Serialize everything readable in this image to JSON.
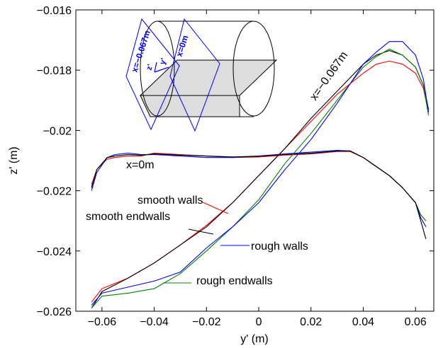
{
  "chart_data": {
    "type": "line",
    "xlabel": "y' (m)",
    "ylabel": "z' (m)",
    "xlim": [
      -0.07,
      0.067
    ],
    "ylim": [
      -0.026,
      -0.016
    ],
    "xticks": [
      -0.06,
      -0.04,
      -0.02,
      0,
      0.02,
      0.04,
      0.06
    ],
    "xtick_labels": [
      "−0.06",
      "−0.04",
      "−0.02",
      "0",
      "0.02",
      "0.04",
      "0.06"
    ],
    "yticks": [
      -0.026,
      -0.024,
      -0.022,
      -0.02,
      -0.018,
      -0.016
    ],
    "ytick_labels": [
      "−0.026",
      "−0.024",
      "−0.022",
      "−0.02",
      "−0.018",
      "−0.016"
    ],
    "grid": false,
    "annotations": {
      "x0": "x=0m",
      "xm067": "x=−0.067m",
      "smooth_walls": "smooth walls",
      "smooth_endwalls": "smooth endwalls",
      "rough_walls": "rough walls",
      "rough_endwalls": "rough endwalls"
    },
    "inset_labels": {
      "x_m067": "x=−0.067m",
      "x0": "x=0m",
      "z_axis": "z'",
      "y_axis": "y'"
    },
    "series": [
      {
        "color": "#ff0000",
        "group": "x=0m",
        "x": [
          -0.064,
          -0.062,
          -0.058,
          -0.055,
          -0.05,
          -0.045,
          -0.04,
          -0.03,
          -0.02,
          -0.01,
          0,
          0.01,
          0.02,
          0.03,
          0.035,
          0.04,
          0.045,
          0.05,
          0.055,
          0.06,
          0.062,
          0.064
        ],
        "y": [
          -0.0218,
          -0.0213,
          -0.02095,
          -0.0209,
          -0.02085,
          -0.02085,
          -0.02075,
          -0.0208,
          -0.02085,
          -0.0209,
          -0.02088,
          -0.02082,
          -0.02078,
          -0.0207,
          -0.0207,
          -0.0209,
          -0.0212,
          -0.0215,
          -0.0219,
          -0.0224,
          -0.0228,
          -0.023
        ]
      },
      {
        "color": "#008000",
        "group": "x=0m",
        "x": [
          -0.064,
          -0.062,
          -0.058,
          -0.055,
          -0.05,
          -0.045,
          -0.04,
          -0.03,
          -0.02,
          -0.01,
          0,
          0.01,
          0.02,
          0.03,
          0.035,
          0.04,
          0.045,
          0.05,
          0.055,
          0.06,
          0.062,
          0.064
        ],
        "y": [
          -0.0219,
          -0.0213,
          -0.0209,
          -0.02085,
          -0.0208,
          -0.02082,
          -0.0208,
          -0.02082,
          -0.02085,
          -0.02088,
          -0.02085,
          -0.0208,
          -0.02075,
          -0.02068,
          -0.02068,
          -0.0209,
          -0.0212,
          -0.0215,
          -0.0219,
          -0.0224,
          -0.0228,
          -0.023
        ]
      },
      {
        "color": "#0000ff",
        "group": "x=0m",
        "x": [
          -0.064,
          -0.062,
          -0.058,
          -0.055,
          -0.05,
          -0.045,
          -0.04,
          -0.03,
          -0.02,
          -0.01,
          0,
          0.01,
          0.02,
          0.03,
          0.035,
          0.04,
          0.045,
          0.05,
          0.055,
          0.06,
          0.062,
          0.064
        ],
        "y": [
          -0.022,
          -0.0214,
          -0.0209,
          -0.0208,
          -0.02075,
          -0.0208,
          -0.0208,
          -0.02085,
          -0.0209,
          -0.0209,
          -0.02085,
          -0.02078,
          -0.02072,
          -0.02066,
          -0.02068,
          -0.0209,
          -0.0212,
          -0.0215,
          -0.0219,
          -0.0224,
          -0.0229,
          -0.0232
        ]
      },
      {
        "color": "#000000",
        "group": "x=0m",
        "x": [
          -0.064,
          -0.062,
          -0.058,
          -0.055,
          -0.05,
          -0.045,
          -0.04,
          -0.03,
          -0.02,
          -0.01,
          0,
          0.01,
          0.02,
          0.03,
          0.035,
          0.04,
          0.045,
          0.05,
          0.055,
          0.06,
          0.062,
          0.064
        ],
        "y": [
          -0.0219,
          -0.0213,
          -0.0209,
          -0.02085,
          -0.0208,
          -0.02082,
          -0.02078,
          -0.02082,
          -0.02085,
          -0.02088,
          -0.02086,
          -0.0208,
          -0.02076,
          -0.02068,
          -0.02068,
          -0.0209,
          -0.0212,
          -0.0215,
          -0.0219,
          -0.0224,
          -0.023,
          -0.0236
        ]
      },
      {
        "color": "#ff0000",
        "group": "x=-0.067m",
        "x": [
          -0.064,
          -0.06,
          -0.05,
          -0.04,
          -0.03,
          -0.02,
          -0.01,
          0,
          0.01,
          0.02,
          0.03,
          0.04,
          0.045,
          0.05,
          0.055,
          0.06,
          0.063,
          0.065
        ],
        "y": [
          -0.0257,
          -0.02525,
          -0.0249,
          -0.0244,
          -0.0238,
          -0.02315,
          -0.0224,
          -0.0215,
          -0.0206,
          -0.0197,
          -0.0188,
          -0.0181,
          -0.0178,
          -0.0177,
          -0.0178,
          -0.0181,
          -0.0186,
          -0.0194
        ]
      },
      {
        "color": "#000000",
        "group": "x=-0.067m",
        "x": [
          -0.064,
          -0.06,
          -0.05,
          -0.04,
          -0.03,
          -0.02,
          -0.01,
          0,
          0.01,
          0.02,
          0.03,
          0.04,
          0.045,
          0.05,
          0.055,
          0.06,
          0.063,
          0.065
        ],
        "y": [
          -0.0259,
          -0.02535,
          -0.0249,
          -0.0244,
          -0.0238,
          -0.0232,
          -0.0224,
          -0.0215,
          -0.0206,
          -0.0196,
          -0.0187,
          -0.0178,
          -0.0175,
          -0.01735,
          -0.0175,
          -0.0179,
          -0.0185,
          -0.0193
        ]
      },
      {
        "color": "#008000",
        "group": "x=-0.067m",
        "x": [
          -0.064,
          -0.06,
          -0.05,
          -0.04,
          -0.03,
          -0.02,
          -0.01,
          0,
          0.01,
          0.02,
          0.03,
          0.04,
          0.045,
          0.05,
          0.055,
          0.06,
          0.063,
          0.065
        ],
        "y": [
          -0.0259,
          -0.0255,
          -0.0254,
          -0.02525,
          -0.02475,
          -0.024,
          -0.0232,
          -0.0223,
          -0.0211,
          -0.0201,
          -0.019,
          -0.0179,
          -0.01755,
          -0.0173,
          -0.0175,
          -0.0179,
          -0.0185,
          -0.0195
        ]
      },
      {
        "color": "#0000ff",
        "group": "x=-0.067m",
        "x": [
          -0.064,
          -0.06,
          -0.05,
          -0.04,
          -0.03,
          -0.02,
          -0.01,
          0,
          0.01,
          0.02,
          0.03,
          0.04,
          0.045,
          0.05,
          0.055,
          0.06,
          0.063,
          0.065
        ],
        "y": [
          -0.0258,
          -0.0254,
          -0.0252,
          -0.025,
          -0.0247,
          -0.0239,
          -0.0232,
          -0.0224,
          -0.0213,
          -0.0203,
          -0.0191,
          -0.0178,
          -0.0174,
          -0.01705,
          -0.01705,
          -0.0175,
          -0.0183,
          -0.0194
        ]
      }
    ]
  }
}
